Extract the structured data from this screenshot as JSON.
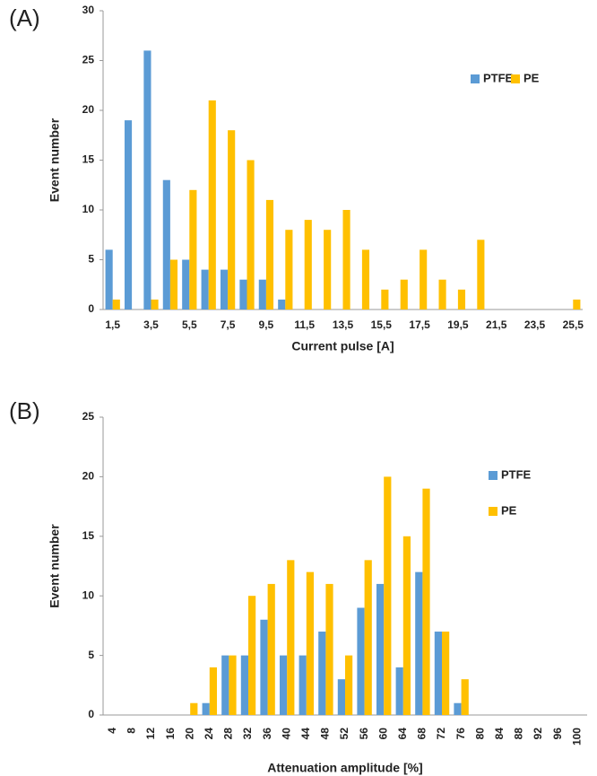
{
  "chart_data": [
    {
      "type": "bar",
      "label": "(A)",
      "x_label": "Current pulse [A]",
      "y_label": "Event number",
      "categories": [
        "1,5",
        null,
        "3,5",
        null,
        "5,5",
        null,
        "7,5",
        null,
        "9,5",
        null,
        "11,5",
        null,
        "13,5",
        null,
        "15,5",
        null,
        "17,5",
        null,
        "19,5",
        null,
        "21,5",
        null,
        "23,5",
        null,
        "25,5"
      ],
      "series": [
        {
          "name": "PTFE",
          "color": "#5b9bd5",
          "values": [
            6,
            19,
            26,
            13,
            5,
            4,
            4,
            3,
            3,
            1,
            0,
            0,
            0,
            0,
            0,
            0,
            0,
            0,
            0,
            0,
            0,
            0,
            0,
            0,
            0
          ]
        },
        {
          "name": "PE",
          "color": "#ffc000",
          "values": [
            1,
            0,
            1,
            5,
            12,
            21,
            18,
            15,
            11,
            8,
            9,
            8,
            10,
            6,
            2,
            3,
            6,
            3,
            2,
            7,
            0,
            0,
            0,
            0,
            1
          ]
        }
      ],
      "ylim": [
        0,
        30
      ],
      "yticks": [
        0,
        5,
        10,
        15,
        20,
        25,
        30
      ],
      "legend": "top-right-row"
    },
    {
      "type": "bar",
      "label": "(B)",
      "x_label": "Attenuation amplitude [%]",
      "y_label": "Event number",
      "categories": [
        "4",
        "8",
        "12",
        "16",
        "20",
        "24",
        "28",
        "32",
        "36",
        "40",
        "44",
        "48",
        "52",
        "56",
        "60",
        "64",
        "68",
        "72",
        "76",
        "80",
        "84",
        "88",
        "92",
        "96",
        "100"
      ],
      "series": [
        {
          "name": "PTFE",
          "color": "#5b9bd5",
          "values": [
            0,
            0,
            0,
            0,
            0,
            1,
            5,
            5,
            8,
            5,
            5,
            7,
            3,
            9,
            11,
            4,
            12,
            7,
            1,
            0,
            0,
            0,
            0,
            0,
            0
          ]
        },
        {
          "name": "PE",
          "color": "#ffc000",
          "values": [
            0,
            0,
            0,
            0,
            1,
            4,
            5,
            10,
            11,
            13,
            12,
            11,
            5,
            13,
            20,
            15,
            19,
            7,
            3,
            0,
            0,
            0,
            0,
            0,
            0
          ]
        }
      ],
      "ylim": [
        0,
        25
      ],
      "yticks": [
        0,
        5,
        10,
        15,
        20,
        25
      ],
      "legend": "right-column"
    }
  ]
}
